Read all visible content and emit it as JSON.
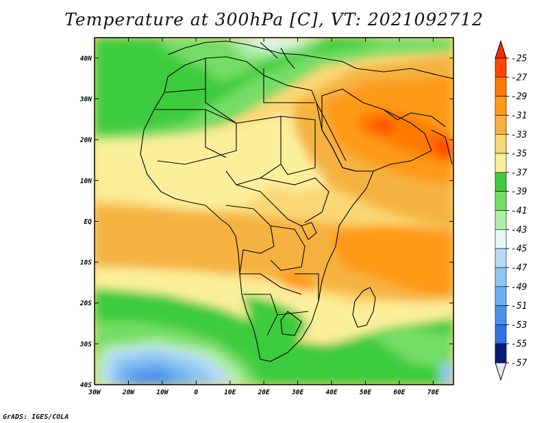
{
  "title": "Temperature at 300hPa [C], VT: 2021092712",
  "footer": "GrADS: IGES/COLA",
  "map": {
    "lon_range": [
      -30,
      76
    ],
    "lat_range": [
      -40,
      45
    ],
    "lon_ticks": [
      {
        "value": -30,
        "label": "30W"
      },
      {
        "value": -20,
        "label": "20W"
      },
      {
        "value": -10,
        "label": "10W"
      },
      {
        "value": 0,
        "label": "0"
      },
      {
        "value": 10,
        "label": "10E"
      },
      {
        "value": 20,
        "label": "20E"
      },
      {
        "value": 30,
        "label": "30E"
      },
      {
        "value": 40,
        "label": "40E"
      },
      {
        "value": 50,
        "label": "50E"
      },
      {
        "value": 60,
        "label": "60E"
      },
      {
        "value": 70,
        "label": "70E"
      }
    ],
    "lat_ticks": [
      {
        "value": 40,
        "label": "40N"
      },
      {
        "value": 30,
        "label": "30N"
      },
      {
        "value": 20,
        "label": "20N"
      },
      {
        "value": 10,
        "label": "10N"
      },
      {
        "value": 0,
        "label": "EQ"
      },
      {
        "value": -10,
        "label": "10S"
      },
      {
        "value": -20,
        "label": "20S"
      },
      {
        "value": -30,
        "label": "30S"
      },
      {
        "value": -40,
        "label": "40S"
      }
    ]
  },
  "colorbar": {
    "levels": [
      {
        "label": "-25",
        "color": "#ff4500"
      },
      {
        "label": "-27",
        "color": "#ff7a00"
      },
      {
        "label": "-29",
        "color": "#ff9a14"
      },
      {
        "label": "-31",
        "color": "#f5b240"
      },
      {
        "label": "-33",
        "color": "#fbd776"
      },
      {
        "label": "-35",
        "color": "#fbef9c"
      },
      {
        "label": "-37",
        "color": "#3dcc3d"
      },
      {
        "label": "-39",
        "color": "#75dd66"
      },
      {
        "label": "-41",
        "color": "#b2eea8"
      },
      {
        "label": "-43",
        "color": "#e4f8f6"
      },
      {
        "label": "-45",
        "color": "#b5dcf7"
      },
      {
        "label": "-47",
        "color": "#8fc6f3"
      },
      {
        "label": "-49",
        "color": "#6aaef0"
      },
      {
        "label": "-51",
        "color": "#4b92ec"
      },
      {
        "label": "-53",
        "color": "#2d72e0"
      },
      {
        "label": "-55",
        "color": "#1a50c2"
      },
      {
        "label": "-57",
        "color": "#0a1a7a"
      }
    ],
    "top_arrow_color": "#ff2a00",
    "bottom_arrow_color": "#e6e6f6"
  }
}
